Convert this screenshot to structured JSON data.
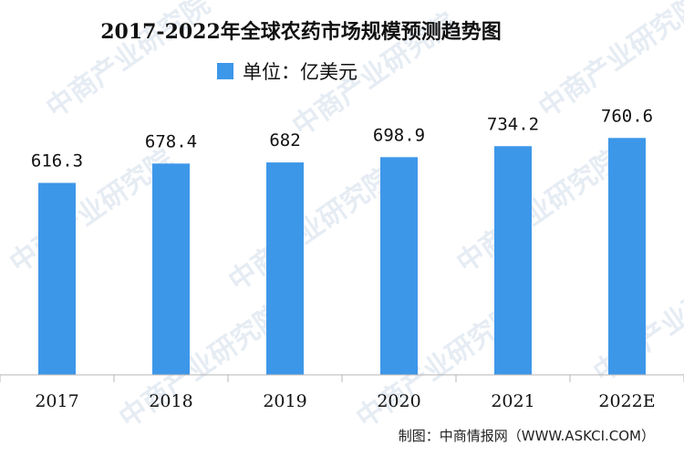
{
  "chart_data": {
    "type": "bar",
    "title": "2017-2022年全球农药市场规模预测趋势图",
    "legend": {
      "label": "单位：亿美元",
      "position": "top-center"
    },
    "categories": [
      "2017",
      "2018",
      "2019",
      "2020",
      "2021",
      "2022E"
    ],
    "series": [
      {
        "values": [
          616.3,
          678.4,
          682,
          698.9,
          734.2,
          760.6
        ]
      }
    ],
    "data_labels": [
      "616.3",
      "678.4",
      "682",
      "698.9",
      "734.2",
      "760.6"
    ],
    "ylim": [
      0,
      900
    ],
    "grid": false,
    "bar_color": "#3d97e9",
    "source": "制图：中商情报网（WWW.ASKCI.COM）",
    "watermark": "中商产业研究院"
  }
}
